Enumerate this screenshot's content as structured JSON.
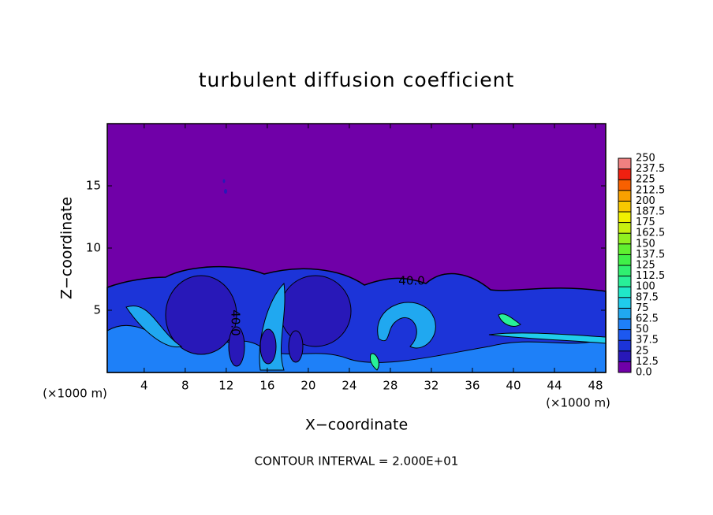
{
  "chart_data": {
    "type": "contour",
    "title": "turbulent diffusion coefficient",
    "x_label": "X−coordinate",
    "y_label": "Z−coordinate",
    "unit_labels": [
      "(×1000 m)",
      "(×1000 m)"
    ],
    "footer": "CONTOUR INTERVAL = 2.000E+01",
    "annotations": [
      "40.0",
      "40.0"
    ],
    "xlim": [
      0.4,
      49.0
    ],
    "ylim": [
      0,
      20
    ],
    "xticks": [
      4,
      8,
      12,
      16,
      20,
      24,
      28,
      32,
      36,
      40,
      44,
      48
    ],
    "yticks": [
      5,
      10,
      15
    ],
    "colorbar": {
      "ticks": [
        {
          "value": 0,
          "label": "0.0"
        },
        12.5,
        25,
        37.5,
        50,
        62.5,
        75,
        87.5,
        100,
        112.5,
        125,
        137.5,
        150,
        162.5,
        175,
        187.5,
        200,
        212.5,
        225,
        237.5,
        250
      ],
      "colors": [
        "#7000a8",
        "#2818b8",
        "#1c34d8",
        "#1c58f0",
        "#1e80f8",
        "#20a8f0",
        "#20ccec",
        "#20e8c8",
        "#28f098",
        "#30f070",
        "#40f048",
        "#60f030",
        "#90f020",
        "#c8f010",
        "#f0f000",
        "#f8c800",
        "#f8a000",
        "#f86000",
        "#f02010",
        "#f08080"
      ]
    }
  }
}
